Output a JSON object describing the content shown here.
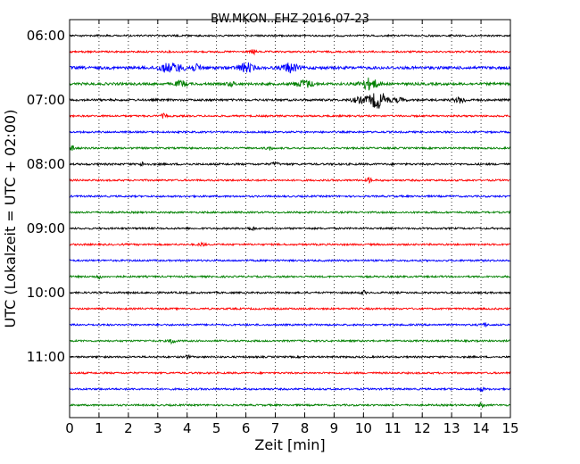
{
  "chart_data": {
    "type": "line",
    "title": "BW.MKON..EHZ 2016-07-23",
    "xlabel": "Zeit  [min]",
    "ylabel": "UTC (Lokalzeit = UTC + 02:00)",
    "xlim": [
      0,
      15
    ],
    "x_ticks": [
      "0",
      "1",
      "2",
      "3",
      "4",
      "5",
      "6",
      "7",
      "8",
      "9",
      "10",
      "11",
      "12",
      "13",
      "14",
      "15"
    ],
    "y_tick_labels": [
      "06:00",
      "07:00",
      "08:00",
      "09:00",
      "10:00",
      "11:00"
    ],
    "grid": {
      "x": "dotted vertical at each minute",
      "y": false
    },
    "trace_interval_minutes": 15,
    "trace_colors": [
      "#000000",
      "#ff0000",
      "#0000ff",
      "#008000"
    ],
    "traces": [
      {
        "start": "06:00",
        "color": "#000000",
        "amplitude": 1.0,
        "events": []
      },
      {
        "start": "06:15",
        "color": "#ff0000",
        "amplitude": 1.0,
        "events": [
          {
            "t": 6.25,
            "amp": 3.0,
            "w": 0.08
          }
        ]
      },
      {
        "start": "06:30",
        "color": "#0000ff",
        "amplitude": 1.6,
        "events": [
          {
            "t": 3.2,
            "amp": 3.0,
            "w": 0.25
          },
          {
            "t": 3.6,
            "amp": 4.0,
            "w": 0.3
          },
          {
            "t": 4.3,
            "amp": 3.0,
            "w": 0.25
          },
          {
            "t": 6.0,
            "amp": 5.0,
            "w": 0.25
          },
          {
            "t": 7.5,
            "amp": 5.0,
            "w": 0.25
          }
        ]
      },
      {
        "start": "06:45",
        "color": "#008000",
        "amplitude": 1.4,
        "events": [
          {
            "t": 3.8,
            "amp": 3.0,
            "w": 0.2
          },
          {
            "t": 5.5,
            "amp": 2.0,
            "w": 0.15
          },
          {
            "t": 8.0,
            "amp": 4.0,
            "w": 0.3
          },
          {
            "t": 10.2,
            "amp": 6.0,
            "w": 0.3
          }
        ]
      },
      {
        "start": "07:00",
        "color": "#000000",
        "amplitude": 1.2,
        "events": [
          {
            "t": 9.9,
            "amp": 3.0,
            "w": 0.3
          },
          {
            "t": 10.5,
            "amp": 9.0,
            "w": 0.3
          },
          {
            "t": 11.2,
            "amp": 2.0,
            "w": 0.2
          },
          {
            "t": 13.3,
            "amp": 3.0,
            "w": 0.2
          }
        ]
      },
      {
        "start": "07:15",
        "color": "#ff0000",
        "amplitude": 1.0,
        "events": [
          {
            "t": 3.2,
            "amp": 2.0,
            "w": 0.1
          }
        ]
      },
      {
        "start": "07:30",
        "color": "#0000ff",
        "amplitude": 1.0,
        "events": []
      },
      {
        "start": "07:45",
        "color": "#008000",
        "amplitude": 1.0,
        "events": [
          {
            "t": 0.1,
            "amp": 3.0,
            "w": 0.08
          },
          {
            "t": 6.8,
            "amp": 2.0,
            "w": 0.1
          }
        ]
      },
      {
        "start": "08:00",
        "color": "#000000",
        "amplitude": 1.1,
        "events": [
          {
            "t": 2.5,
            "amp": 2.0,
            "w": 0.1
          },
          {
            "t": 7.0,
            "amp": 2.0,
            "w": 0.1
          }
        ]
      },
      {
        "start": "08:15",
        "color": "#ff0000",
        "amplitude": 1.0,
        "events": [
          {
            "t": 10.2,
            "amp": 3.0,
            "w": 0.08
          }
        ]
      },
      {
        "start": "08:30",
        "color": "#0000ff",
        "amplitude": 1.0,
        "events": []
      },
      {
        "start": "08:45",
        "color": "#008000",
        "amplitude": 1.0,
        "events": []
      },
      {
        "start": "09:00",
        "color": "#000000",
        "amplitude": 1.0,
        "events": [
          {
            "t": 6.2,
            "amp": 2.0,
            "w": 0.1
          }
        ]
      },
      {
        "start": "09:15",
        "color": "#ff0000",
        "amplitude": 1.0,
        "events": [
          {
            "t": 4.5,
            "amp": 2.0,
            "w": 0.1
          }
        ]
      },
      {
        "start": "09:30",
        "color": "#0000ff",
        "amplitude": 1.0,
        "events": []
      },
      {
        "start": "09:45",
        "color": "#008000",
        "amplitude": 1.0,
        "events": [
          {
            "t": 1.0,
            "amp": 2.0,
            "w": 0.1
          }
        ]
      },
      {
        "start": "10:00",
        "color": "#000000",
        "amplitude": 1.0,
        "events": [
          {
            "t": 10.0,
            "amp": 2.0,
            "w": 0.08
          }
        ]
      },
      {
        "start": "10:15",
        "color": "#ff0000",
        "amplitude": 1.0,
        "events": []
      },
      {
        "start": "10:30",
        "color": "#0000ff",
        "amplitude": 1.0,
        "events": [
          {
            "t": 14.1,
            "amp": 2.0,
            "w": 0.1
          }
        ]
      },
      {
        "start": "10:45",
        "color": "#008000",
        "amplitude": 1.0,
        "events": [
          {
            "t": 3.5,
            "amp": 3.0,
            "w": 0.1
          }
        ]
      },
      {
        "start": "11:00",
        "color": "#000000",
        "amplitude": 1.0,
        "events": [
          {
            "t": 4.0,
            "amp": 2.0,
            "w": 0.08
          }
        ]
      },
      {
        "start": "11:15",
        "color": "#ff0000",
        "amplitude": 1.0,
        "events": []
      },
      {
        "start": "11:30",
        "color": "#0000ff",
        "amplitude": 1.0,
        "events": [
          {
            "t": 14.0,
            "amp": 2.0,
            "w": 0.1
          }
        ]
      },
      {
        "start": "11:45",
        "color": "#008000",
        "amplitude": 1.0,
        "events": [
          {
            "t": 14.0,
            "amp": 2.0,
            "w": 0.1
          }
        ]
      }
    ]
  }
}
